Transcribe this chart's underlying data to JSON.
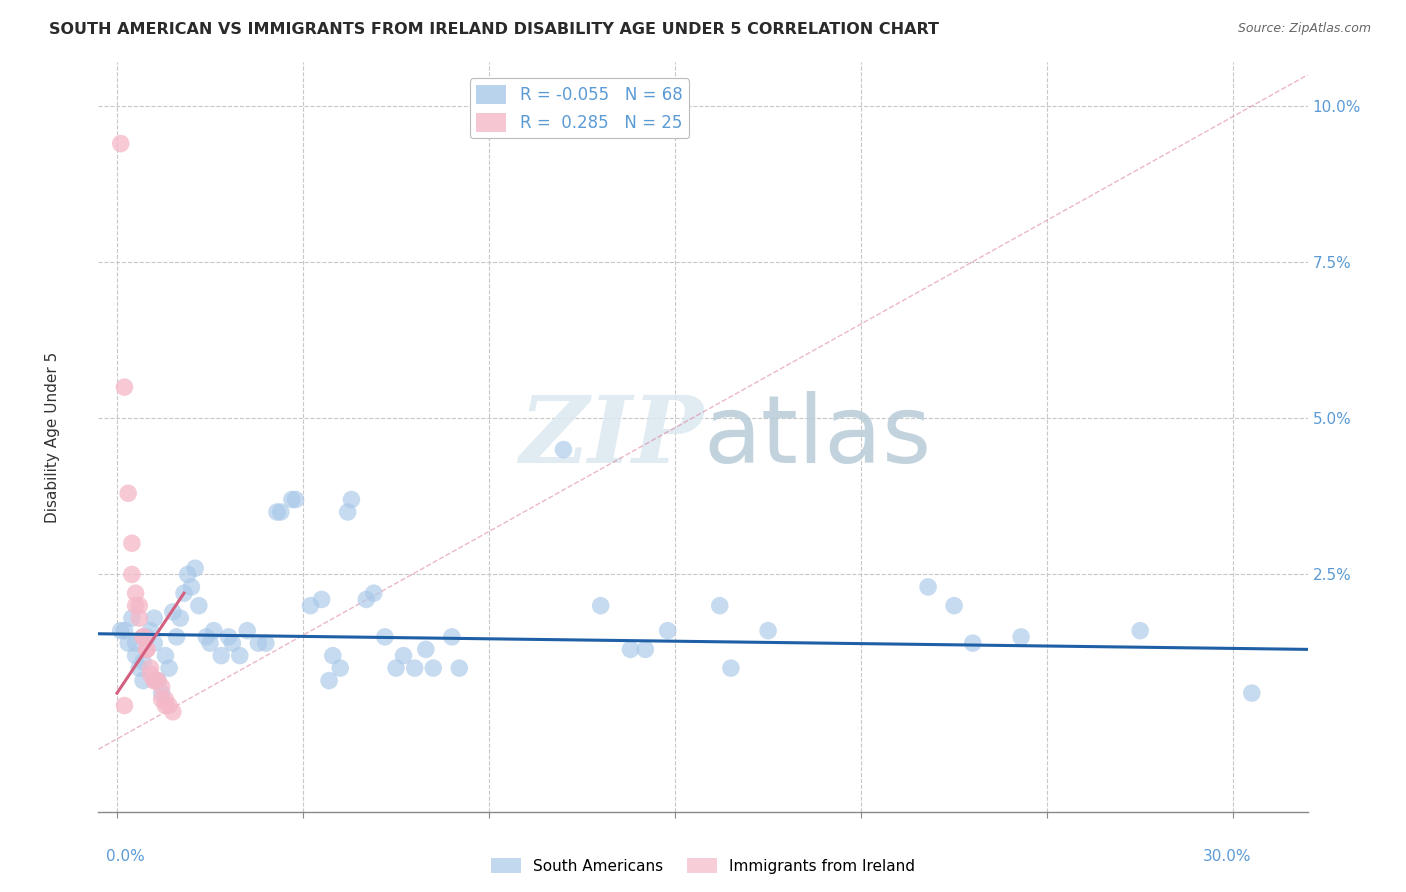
{
  "title": "SOUTH AMERICAN VS IMMIGRANTS FROM IRELAND DISABILITY AGE UNDER 5 CORRELATION CHART",
  "source": "Source: ZipAtlas.com",
  "ylabel": "Disability Age Under 5",
  "xlabel_ticks_ends": [
    "0.0%",
    "30.0%"
  ],
  "xlabel_vals": [
    0.0,
    0.05,
    0.1,
    0.15,
    0.2,
    0.25,
    0.3
  ],
  "ylabel_ticks": [
    "2.5%",
    "5.0%",
    "7.5%",
    "10.0%"
  ],
  "ylabel_vals": [
    0.025,
    0.05,
    0.075,
    0.1
  ],
  "xlim": [
    -0.005,
    0.32
  ],
  "ylim": [
    -0.013,
    0.107
  ],
  "legend_entries": [
    {
      "label": "R = -0.055   N = 68",
      "color": "#a8c8e8"
    },
    {
      "label": "R =  0.285   N = 25",
      "color": "#f4b8c8"
    }
  ],
  "legend_labels": [
    "South Americans",
    "Immigrants from Ireland"
  ],
  "blue_color": "#a8c8e8",
  "pink_color": "#f4b8c8",
  "blue_line_color": "#1f5fa6",
  "pink_line_color": "#d46080",
  "watermark_color": "#dce8f0",
  "blue_scatter": [
    [
      0.001,
      0.016
    ],
    [
      0.002,
      0.016
    ],
    [
      0.003,
      0.014
    ],
    [
      0.004,
      0.018
    ],
    [
      0.005,
      0.012
    ],
    [
      0.005,
      0.014
    ],
    [
      0.006,
      0.01
    ],
    [
      0.007,
      0.008
    ],
    [
      0.007,
      0.011
    ],
    [
      0.008,
      0.015
    ],
    [
      0.009,
      0.016
    ],
    [
      0.01,
      0.014
    ],
    [
      0.01,
      0.018
    ],
    [
      0.011,
      0.008
    ],
    [
      0.012,
      0.006
    ],
    [
      0.013,
      0.012
    ],
    [
      0.014,
      0.01
    ],
    [
      0.015,
      0.019
    ],
    [
      0.016,
      0.015
    ],
    [
      0.017,
      0.018
    ],
    [
      0.018,
      0.022
    ],
    [
      0.019,
      0.025
    ],
    [
      0.02,
      0.023
    ],
    [
      0.021,
      0.026
    ],
    [
      0.022,
      0.02
    ],
    [
      0.024,
      0.015
    ],
    [
      0.025,
      0.014
    ],
    [
      0.026,
      0.016
    ],
    [
      0.028,
      0.012
    ],
    [
      0.03,
      0.015
    ],
    [
      0.031,
      0.014
    ],
    [
      0.033,
      0.012
    ],
    [
      0.035,
      0.016
    ],
    [
      0.038,
      0.014
    ],
    [
      0.04,
      0.014
    ],
    [
      0.043,
      0.035
    ],
    [
      0.044,
      0.035
    ],
    [
      0.047,
      0.037
    ],
    [
      0.048,
      0.037
    ],
    [
      0.052,
      0.02
    ],
    [
      0.055,
      0.021
    ],
    [
      0.057,
      0.008
    ],
    [
      0.058,
      0.012
    ],
    [
      0.06,
      0.01
    ],
    [
      0.062,
      0.035
    ],
    [
      0.063,
      0.037
    ],
    [
      0.067,
      0.021
    ],
    [
      0.069,
      0.022
    ],
    [
      0.072,
      0.015
    ],
    [
      0.075,
      0.01
    ],
    [
      0.077,
      0.012
    ],
    [
      0.08,
      0.01
    ],
    [
      0.083,
      0.013
    ],
    [
      0.085,
      0.01
    ],
    [
      0.09,
      0.015
    ],
    [
      0.092,
      0.01
    ],
    [
      0.12,
      0.045
    ],
    [
      0.13,
      0.02
    ],
    [
      0.138,
      0.013
    ],
    [
      0.142,
      0.013
    ],
    [
      0.148,
      0.016
    ],
    [
      0.162,
      0.02
    ],
    [
      0.165,
      0.01
    ],
    [
      0.175,
      0.016
    ],
    [
      0.218,
      0.023
    ],
    [
      0.225,
      0.02
    ],
    [
      0.23,
      0.014
    ],
    [
      0.243,
      0.015
    ],
    [
      0.275,
      0.016
    ],
    [
      0.305,
      0.006
    ]
  ],
  "pink_scatter": [
    [
      0.001,
      0.094
    ],
    [
      0.002,
      0.055
    ],
    [
      0.002,
      0.004
    ],
    [
      0.003,
      0.038
    ],
    [
      0.004,
      0.03
    ],
    [
      0.004,
      0.025
    ],
    [
      0.005,
      0.022
    ],
    [
      0.005,
      0.02
    ],
    [
      0.006,
      0.02
    ],
    [
      0.006,
      0.018
    ],
    [
      0.007,
      0.015
    ],
    [
      0.007,
      0.015
    ],
    [
      0.008,
      0.013
    ],
    [
      0.008,
      0.013
    ],
    [
      0.009,
      0.01
    ],
    [
      0.009,
      0.009
    ],
    [
      0.01,
      0.008
    ],
    [
      0.01,
      0.008
    ],
    [
      0.011,
      0.008
    ],
    [
      0.012,
      0.007
    ],
    [
      0.012,
      0.005
    ],
    [
      0.013,
      0.005
    ],
    [
      0.013,
      0.004
    ],
    [
      0.014,
      0.004
    ],
    [
      0.015,
      0.003
    ]
  ],
  "blue_line": {
    "x0": -0.005,
    "y0": 0.0155,
    "x1": 0.32,
    "y1": 0.013
  },
  "pink_line": {
    "x0": 0.0,
    "y0": 0.006,
    "x1": 0.018,
    "y1": 0.022
  },
  "pink_dashed_line": {
    "x0": -0.005,
    "y0": -0.003,
    "x1": 0.32,
    "y1": 0.105
  }
}
